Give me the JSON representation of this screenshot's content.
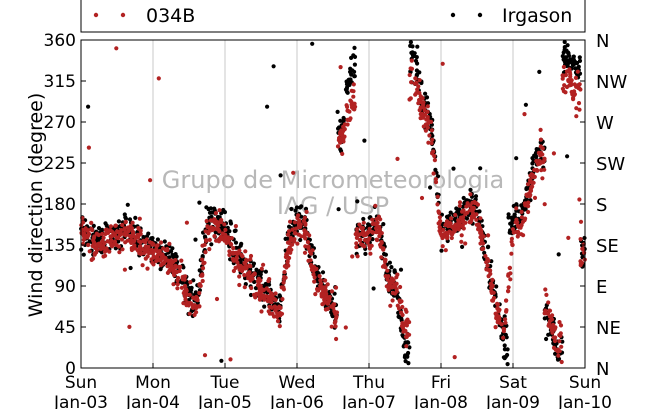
{
  "chart_data": {
    "type": "scatter",
    "title": "",
    "xlabel": "",
    "ylabel": "Wind direction (degree)",
    "ylim": [
      0,
      360
    ],
    "yticks": [
      0,
      45,
      90,
      135,
      180,
      225,
      270,
      315,
      360
    ],
    "right_axis_labels": [
      {
        "value": 0,
        "label": "N"
      },
      {
        "value": 45,
        "label": "NE"
      },
      {
        "value": 90,
        "label": "E"
      },
      {
        "value": 135,
        "label": "SE"
      },
      {
        "value": 180,
        "label": "S"
      },
      {
        "value": 225,
        "label": "SW"
      },
      {
        "value": 270,
        "label": "W"
      },
      {
        "value": 315,
        "label": "NW"
      },
      {
        "value": 360,
        "label": "N"
      }
    ],
    "xlim": [
      "2016-01-03",
      "2016-01-10"
    ],
    "x_day_ticks": [
      {
        "day": 0,
        "weekday": "Sun",
        "date": "Jan-03"
      },
      {
        "day": 1,
        "weekday": "Mon",
        "date": "Jan-04"
      },
      {
        "day": 2,
        "weekday": "Tue",
        "date": "Jan-05"
      },
      {
        "day": 3,
        "weekday": "Wed",
        "date": "Jan-06"
      },
      {
        "day": 4,
        "weekday": "Thu",
        "date": "Jan-07"
      },
      {
        "day": 5,
        "weekday": "Fri",
        "date": "Jan-08"
      },
      {
        "day": 6,
        "weekday": "Sat",
        "date": "Jan-09"
      },
      {
        "day": 7,
        "weekday": "Sun",
        "date": "Jan-10"
      }
    ],
    "grid": "vertical lines at day boundaries",
    "legend_position": "top",
    "watermark": [
      "Grupo de Micrometeorologia",
      "IAG / USP"
    ],
    "series": [
      {
        "name": "034B",
        "color": "#b22222",
        "x": [
          "2016-01-03 00:00",
          "2016-01-03 03:00",
          "2016-01-03 06:00",
          "2016-01-03 09:00",
          "2016-01-03 12:00",
          "2016-01-03 15:00",
          "2016-01-03 18:00",
          "2016-01-03 21:00",
          "2016-01-04 00:00",
          "2016-01-04 03:00",
          "2016-01-04 06:00",
          "2016-01-04 09:00",
          "2016-01-04 12:00",
          "2016-01-04 15:00",
          "2016-01-04 18:00",
          "2016-01-04 21:00",
          "2016-01-05 00:00",
          "2016-01-05 03:00",
          "2016-01-05 06:00",
          "2016-01-05 09:00",
          "2016-01-05 12:00",
          "2016-01-05 15:00",
          "2016-01-05 18:00",
          "2016-01-05 21:00",
          "2016-01-06 00:00",
          "2016-01-06 03:00",
          "2016-01-06 06:00",
          "2016-01-06 09:00",
          "2016-01-06 12:00",
          "2016-01-06 15:00",
          "2016-01-06 18:00",
          "2016-01-06 21:00",
          "2016-01-07 00:00",
          "2016-01-07 03:00",
          "2016-01-07 06:00",
          "2016-01-07 09:00",
          "2016-01-07 12:00",
          "2016-01-07 15:00",
          "2016-01-07 18:00",
          "2016-01-07 21:00",
          "2016-01-08 00:00",
          "2016-01-08 03:00",
          "2016-01-08 06:00",
          "2016-01-08 09:00",
          "2016-01-08 12:00",
          "2016-01-08 15:00",
          "2016-01-08 18:00",
          "2016-01-08 21:00",
          "2016-01-09 00:00",
          "2016-01-09 03:00",
          "2016-01-09 06:00",
          "2016-01-09 09:00",
          "2016-01-09 12:00",
          "2016-01-09 15:00",
          "2016-01-09 18:00",
          "2016-01-09 21:00",
          "2016-01-10 00:00"
        ],
        "y": [
          150,
          140,
          135,
          140,
          145,
          150,
          140,
          130,
          125,
          120,
          115,
          100,
          75,
          70,
          150,
          155,
          145,
          125,
          110,
          100,
          85,
          75,
          55,
          130,
          160,
          150,
          100,
          80,
          60,
          250,
          300,
          145,
          140,
          160,
          100,
          85,
          40,
          320,
          280,
          250,
          145,
          150,
          160,
          175,
          170,
          120,
          70,
          40,
          150,
          160,
          200,
          230,
          60,
          30,
          320,
          300,
          130
        ]
      },
      {
        "name": "Irgason",
        "color": "#000000",
        "x": [
          "2016-01-03 00:00",
          "2016-01-03 03:00",
          "2016-01-03 06:00",
          "2016-01-03 09:00",
          "2016-01-03 12:00",
          "2016-01-03 15:00",
          "2016-01-03 18:00",
          "2016-01-03 21:00",
          "2016-01-04 00:00",
          "2016-01-04 03:00",
          "2016-01-04 06:00",
          "2016-01-04 09:00",
          "2016-01-04 12:00",
          "2016-01-04 15:00",
          "2016-01-04 18:00",
          "2016-01-04 21:00",
          "2016-01-05 00:00",
          "2016-01-05 03:00",
          "2016-01-05 06:00",
          "2016-01-05 09:00",
          "2016-01-05 12:00",
          "2016-01-05 15:00",
          "2016-01-05 18:00",
          "2016-01-05 21:00",
          "2016-01-06 00:00",
          "2016-01-06 03:00",
          "2016-01-06 06:00",
          "2016-01-06 09:00",
          "2016-01-06 12:00",
          "2016-01-06 15:00",
          "2016-01-06 18:00",
          "2016-01-06 21:00",
          "2016-01-07 00:00",
          "2016-01-07 03:00",
          "2016-01-07 06:00",
          "2016-01-07 09:00",
          "2016-01-07 12:00",
          "2016-01-07 15:00",
          "2016-01-07 18:00",
          "2016-01-07 21:00",
          "2016-01-08 00:00",
          "2016-01-08 03:00",
          "2016-01-08 06:00",
          "2016-01-08 09:00",
          "2016-01-08 12:00",
          "2016-01-08 15:00",
          "2016-01-08 18:00",
          "2016-01-08 21:00",
          "2016-01-09 00:00",
          "2016-01-09 03:00",
          "2016-01-09 06:00",
          "2016-01-09 09:00",
          "2016-01-09 12:00",
          "2016-01-09 15:00",
          "2016-01-09 18:00",
          "2016-01-09 21:00",
          "2016-01-10 00:00"
        ],
        "y": [
          155,
          145,
          140,
          145,
          150,
          155,
          145,
          135,
          130,
          125,
          120,
          105,
          80,
          75,
          160,
          160,
          150,
          130,
          115,
          105,
          90,
          80,
          60,
          140,
          165,
          155,
          105,
          85,
          65,
          260,
          330,
          150,
          145,
          165,
          105,
          90,
          20,
          340,
          300,
          260,
          150,
          155,
          165,
          180,
          175,
          125,
          75,
          30,
          160,
          170,
          210,
          240,
          50,
          20,
          340,
          330,
          135
        ]
      }
    ]
  }
}
